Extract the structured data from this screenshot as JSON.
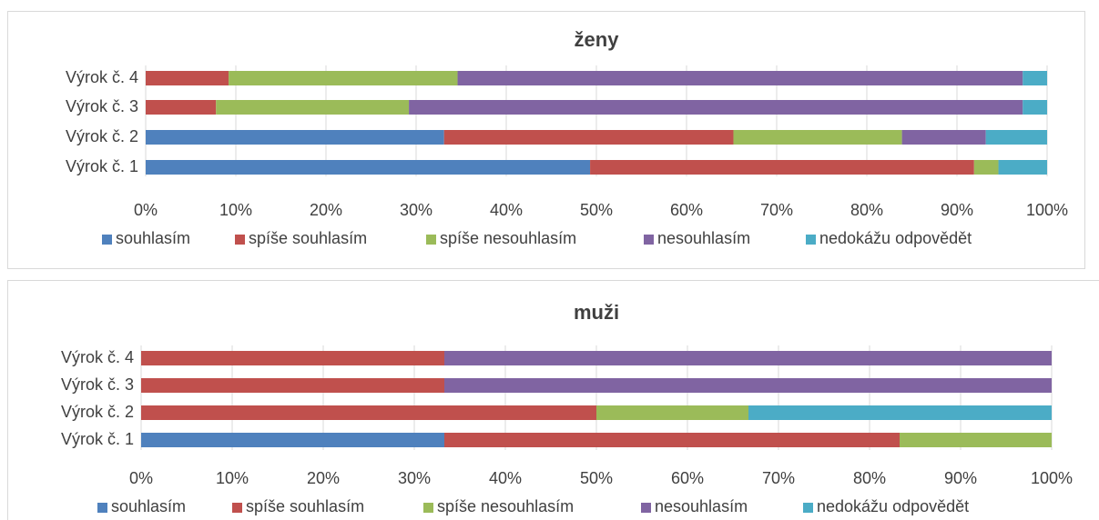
{
  "chart_data": [
    {
      "type": "bar",
      "orientation": "horizontal",
      "stacked": true,
      "title": "ženy",
      "categories": [
        "Výrok č. 1",
        "Výrok č. 2",
        "Výrok č. 3",
        "Výrok č. 4"
      ],
      "series": [
        {
          "name": "souhlasím",
          "color": "#4f81bd",
          "values": [
            49.3,
            33.1,
            0,
            0
          ]
        },
        {
          "name": "spíše souhlasím",
          "color": "#c0504d",
          "values": [
            42.6,
            32.1,
            7.8,
            9.2
          ]
        },
        {
          "name": "spíše nesouhlasím",
          "color": "#9bbb59",
          "values": [
            2.7,
            18.7,
            21.4,
            25.4
          ]
        },
        {
          "name": "nesouhlasím",
          "color": "#8064a2",
          "values": [
            0,
            9.3,
            68.1,
            62.7
          ]
        },
        {
          "name": "nedokážu odpovědět",
          "color": "#4bacc6",
          "values": [
            5.4,
            6.8,
            2.7,
            2.7
          ]
        }
      ],
      "xlim": [
        0,
        100
      ],
      "xticks": [
        {
          "value": 0,
          "label": "0%"
        },
        {
          "value": 10,
          "label": "10%"
        },
        {
          "value": 20,
          "label": "20%"
        },
        {
          "value": 30,
          "label": "30%"
        },
        {
          "value": 40,
          "label": "40%"
        },
        {
          "value": 50,
          "label": "50%"
        },
        {
          "value": 60,
          "label": "60%"
        },
        {
          "value": 70,
          "label": "70%"
        },
        {
          "value": 80,
          "label": "80%"
        },
        {
          "value": 90,
          "label": "90%"
        },
        {
          "value": 100,
          "label": "100%"
        }
      ],
      "grid": true,
      "legend": "bottom"
    },
    {
      "type": "bar",
      "orientation": "horizontal",
      "stacked": true,
      "title": "muži",
      "categories": [
        "Výrok č. 1",
        "Výrok č. 2",
        "Výrok č. 3",
        "Výrok č. 4"
      ],
      "series": [
        {
          "name": "souhlasím",
          "color": "#4f81bd",
          "values": [
            33.3,
            0,
            0,
            0
          ]
        },
        {
          "name": "spíše souhlasím",
          "color": "#c0504d",
          "values": [
            50,
            50,
            33.3,
            33.3
          ]
        },
        {
          "name": "spíše nesouhlasím",
          "color": "#9bbb59",
          "values": [
            16.7,
            16.7,
            0,
            0
          ]
        },
        {
          "name": "nesouhlasím",
          "color": "#8064a2",
          "values": [
            0,
            0,
            66.7,
            66.7
          ]
        },
        {
          "name": "nedokážu odpovědět",
          "color": "#4bacc6",
          "values": [
            0,
            33.3,
            0,
            0
          ]
        }
      ],
      "xlim": [
        0,
        100
      ],
      "xticks": [
        {
          "value": 0,
          "label": "0%"
        },
        {
          "value": 10,
          "label": "10%"
        },
        {
          "value": 20,
          "label": "20%"
        },
        {
          "value": 30,
          "label": "30%"
        },
        {
          "value": 40,
          "label": "40%"
        },
        {
          "value": 50,
          "label": "50%"
        },
        {
          "value": 60,
          "label": "60%"
        },
        {
          "value": 70,
          "label": "70%"
        },
        {
          "value": 80,
          "label": "80%"
        },
        {
          "value": 90,
          "label": "90%"
        },
        {
          "value": 100,
          "label": "100%"
        }
      ],
      "grid": true,
      "legend": "bottom"
    }
  ]
}
